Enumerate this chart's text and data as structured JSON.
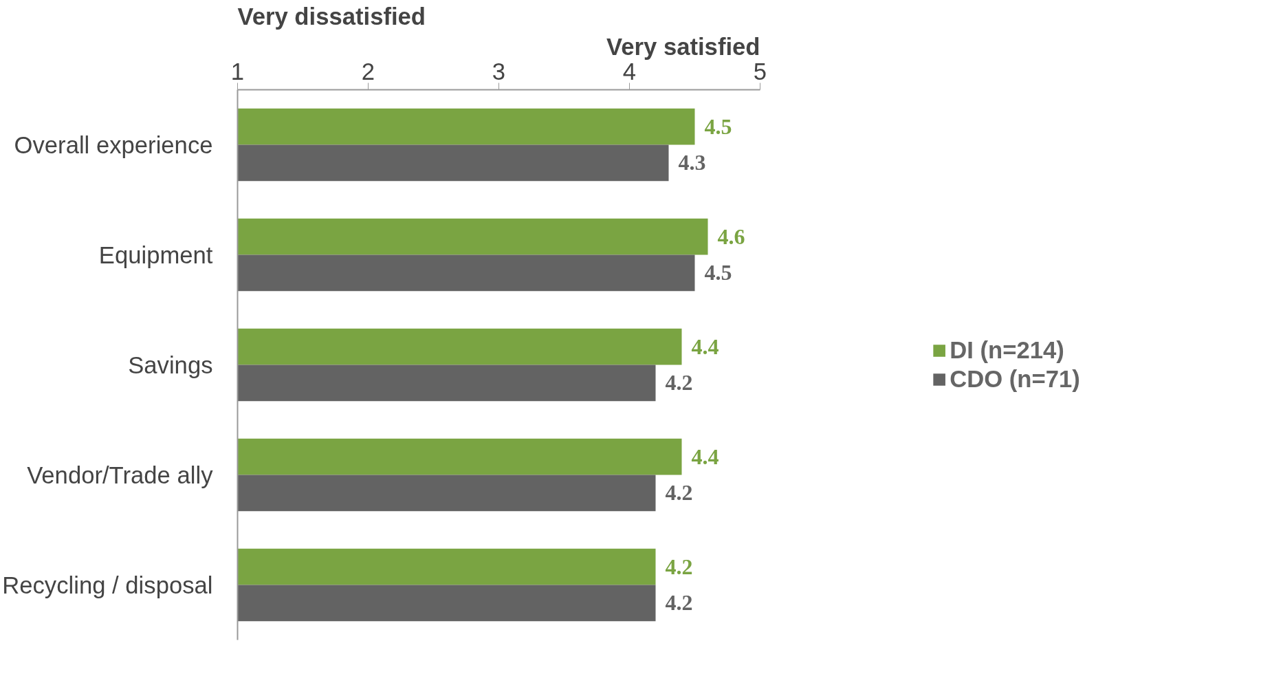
{
  "chart_data": {
    "type": "bar",
    "orientation": "horizontal",
    "categories": [
      "Overall experience",
      "Equipment",
      "Savings",
      "Vendor/Trade ally",
      "Recycling / disposal"
    ],
    "series": [
      {
        "name": "DI (n=214)",
        "color": "#7aa442",
        "values": [
          4.5,
          4.6,
          4.4,
          4.4,
          4.2
        ]
      },
      {
        "name": "CDO (n=71)",
        "color": "#636363",
        "values": [
          4.3,
          4.5,
          4.2,
          4.2,
          4.2
        ]
      }
    ],
    "xlim": [
      1,
      5
    ],
    "xticks": [
      1,
      2,
      3,
      4,
      5
    ],
    "data_labels": true,
    "legend": "right",
    "grid": false,
    "annotations": [
      "Very dissatisfied",
      "Very satisfied"
    ]
  }
}
